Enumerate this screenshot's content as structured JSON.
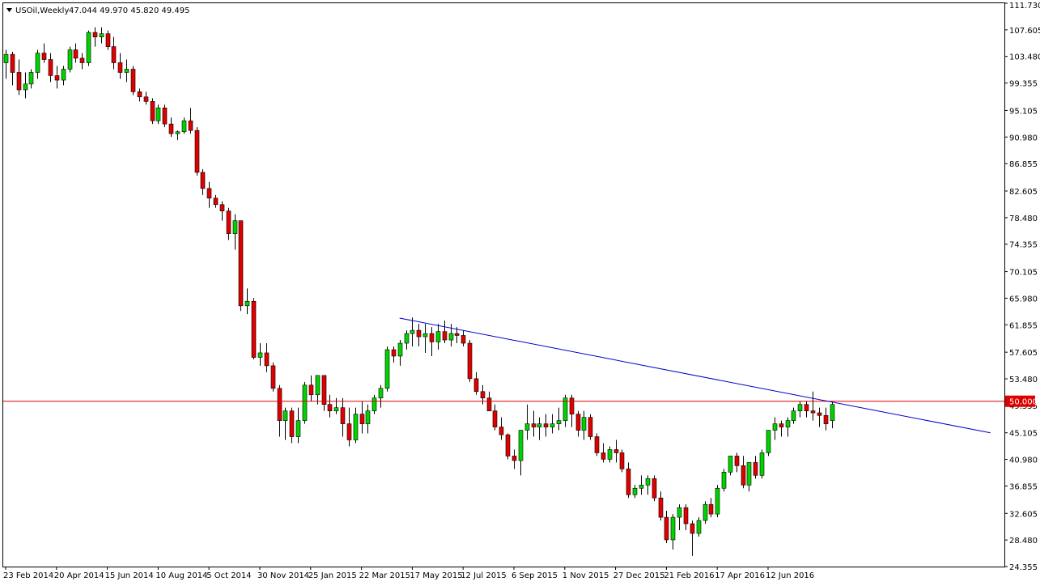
{
  "header": {
    "symbol": "USOil,Weekly",
    "ohlc": "47.044 49.970 45.820 49.495"
  },
  "colors": {
    "background": "#ffffff",
    "frame": "#000000",
    "bull_fill": "#00d400",
    "bear_fill": "#e00000",
    "wick": "#000000",
    "trendline": "#0000c8",
    "hline": "#e00000"
  },
  "chart_data": {
    "type": "candlestick",
    "title": "USOil,Weekly",
    "xlabel": "",
    "ylabel": "",
    "ylim": [
      24.355,
      111.73
    ],
    "grid": false,
    "y_ticks": [
      "111.730",
      "107.605",
      "103.480",
      "99.355",
      "95.105",
      "90.980",
      "86.855",
      "82.605",
      "78.480",
      "74.355",
      "70.105",
      "65.980",
      "61.855",
      "57.605",
      "53.480",
      "49.355",
      "45.105",
      "40.980",
      "36.855",
      "32.605",
      "28.480",
      "24.355"
    ],
    "x_ticks": [
      {
        "label": "23 Feb 2014",
        "index": 0
      },
      {
        "label": "20 Apr 2014",
        "index": 8
      },
      {
        "label": "15 Jun 2014",
        "index": 16
      },
      {
        "label": "10 Aug 2014",
        "index": 24
      },
      {
        "label": "5 Oct 2014",
        "index": 32
      },
      {
        "label": "30 Nov 2014",
        "index": 40
      },
      {
        "label": "25 Jan 2015",
        "index": 48
      },
      {
        "label": "22 Mar 2015",
        "index": 56
      },
      {
        "label": "17 May 2015",
        "index": 64
      },
      {
        "label": "12 Jul 2015",
        "index": 72
      },
      {
        "label": "6 Sep 2015",
        "index": 80
      },
      {
        "label": "1 Nov 2015",
        "index": 88
      },
      {
        "label": "27 Dec 2015",
        "index": 96
      },
      {
        "label": "21 Feb 2016",
        "index": 104
      },
      {
        "label": "17 Apr 2016",
        "index": 112
      },
      {
        "label": "12 Jun 2016",
        "index": 120
      }
    ],
    "candles": [
      [
        102.5,
        104.5,
        100.0,
        103.8
      ],
      [
        103.8,
        104.2,
        99.0,
        101.0
      ],
      [
        101.0,
        103.0,
        97.5,
        98.3
      ],
      [
        98.3,
        101.0,
        97.0,
        99.2
      ],
      [
        99.2,
        101.5,
        98.5,
        101.0
      ],
      [
        101.0,
        104.5,
        100.0,
        104.0
      ],
      [
        104.0,
        105.5,
        102.5,
        103.0
      ],
      [
        103.0,
        104.0,
        99.5,
        100.5
      ],
      [
        100.5,
        102.0,
        98.5,
        99.8
      ],
      [
        99.8,
        102.0,
        99.0,
        101.5
      ],
      [
        101.5,
        105.0,
        101.0,
        104.5
      ],
      [
        104.5,
        105.5,
        102.5,
        103.2
      ],
      [
        103.2,
        104.0,
        101.5,
        102.5
      ],
      [
        102.5,
        107.5,
        102.0,
        107.2
      ],
      [
        107.2,
        108.0,
        105.0,
        106.5
      ],
      [
        106.5,
        108.0,
        105.5,
        107.0
      ],
      [
        107.0,
        107.5,
        104.5,
        105.0
      ],
      [
        105.0,
        106.5,
        101.5,
        102.5
      ],
      [
        102.5,
        104.0,
        100.0,
        101.0
      ],
      [
        101.0,
        103.0,
        99.5,
        101.5
      ],
      [
        101.5,
        102.0,
        97.5,
        98.0
      ],
      [
        98.0,
        98.5,
        96.5,
        97.2
      ],
      [
        97.2,
        98.0,
        96.0,
        96.5
      ],
      [
        96.5,
        97.0,
        93.0,
        93.5
      ],
      [
        93.5,
        96.0,
        93.0,
        95.5
      ],
      [
        95.5,
        96.0,
        92.5,
        93.0
      ],
      [
        93.0,
        94.0,
        91.0,
        91.5
      ],
      [
        91.5,
        92.0,
        90.5,
        91.8
      ],
      [
        91.8,
        94.0,
        91.5,
        93.5
      ],
      [
        93.5,
        95.5,
        91.5,
        92.0
      ],
      [
        92.0,
        92.5,
        85.0,
        85.5
      ],
      [
        85.5,
        86.0,
        82.0,
        83.0
      ],
      [
        83.0,
        84.0,
        80.0,
        81.5
      ],
      [
        81.5,
        82.0,
        80.0,
        80.5
      ],
      [
        80.5,
        81.0,
        78.0,
        79.5
      ],
      [
        79.5,
        80.0,
        75.0,
        76.0
      ],
      [
        76.0,
        79.0,
        73.5,
        78.0
      ],
      [
        78.0,
        78.0,
        64.0,
        64.8
      ],
      [
        64.8,
        67.5,
        63.5,
        65.5
      ],
      [
        65.5,
        66.0,
        56.5,
        56.8
      ],
      [
        56.8,
        59.0,
        55.5,
        57.5
      ],
      [
        57.5,
        59.0,
        54.5,
        55.5
      ],
      [
        55.5,
        56.0,
        51.5,
        52.0
      ],
      [
        52.0,
        52.5,
        44.5,
        47.0
      ],
      [
        47.0,
        49.0,
        44.0,
        48.5
      ],
      [
        48.5,
        49.0,
        43.5,
        44.5
      ],
      [
        44.5,
        49.0,
        43.5,
        47.0
      ],
      [
        47.0,
        53.0,
        46.5,
        52.5
      ],
      [
        52.5,
        54.0,
        50.0,
        51.0
      ],
      [
        51.0,
        54.0,
        49.5,
        54.0
      ],
      [
        54.0,
        54.0,
        48.5,
        49.5
      ],
      [
        49.5,
        51.0,
        47.5,
        48.5
      ],
      [
        48.5,
        50.5,
        48.0,
        49.0
      ],
      [
        49.0,
        50.5,
        44.5,
        46.5
      ],
      [
        46.5,
        49.0,
        43.0,
        44.0
      ],
      [
        44.0,
        49.0,
        43.5,
        48.0
      ],
      [
        48.0,
        50.0,
        45.0,
        46.5
      ],
      [
        46.5,
        49.5,
        45.0,
        48.5
      ],
      [
        48.5,
        51.0,
        48.0,
        50.5
      ],
      [
        50.5,
        52.5,
        49.0,
        52.0
      ],
      [
        52.0,
        58.5,
        51.5,
        58.0
      ],
      [
        58.0,
        58.5,
        56.0,
        57.0
      ],
      [
        57.0,
        59.5,
        55.5,
        59.0
      ],
      [
        59.0,
        61.0,
        58.0,
        60.5
      ],
      [
        60.5,
        63.0,
        58.5,
        61.0
      ],
      [
        61.0,
        62.0,
        58.5,
        60.0
      ],
      [
        60.0,
        62.0,
        57.5,
        60.5
      ],
      [
        60.5,
        61.5,
        57.0,
        59.2
      ],
      [
        59.2,
        62.0,
        58.0,
        60.8
      ],
      [
        60.8,
        62.5,
        59.0,
        59.5
      ],
      [
        59.5,
        62.0,
        58.5,
        60.5
      ],
      [
        60.5,
        61.5,
        59.0,
        60.2
      ],
      [
        60.2,
        61.0,
        58.5,
        59.0
      ],
      [
        59.0,
        59.5,
        53.0,
        53.5
      ],
      [
        53.5,
        54.5,
        51.0,
        51.5
      ],
      [
        51.5,
        52.5,
        49.5,
        50.5
      ],
      [
        50.5,
        51.5,
        48.5,
        48.5
      ],
      [
        48.5,
        49.5,
        45.5,
        46.0
      ],
      [
        46.0,
        47.5,
        44.0,
        44.8
      ],
      [
        44.8,
        45.0,
        41.0,
        41.5
      ],
      [
        41.5,
        42.5,
        39.5,
        40.8
      ],
      [
        40.8,
        45.5,
        38.5,
        45.5
      ],
      [
        45.5,
        49.5,
        44.0,
        46.5
      ],
      [
        46.5,
        48.5,
        44.5,
        46.0
      ],
      [
        46.0,
        47.5,
        44.0,
        46.5
      ],
      [
        46.5,
        48.0,
        44.5,
        46.0
      ],
      [
        46.0,
        48.0,
        45.0,
        46.5
      ],
      [
        46.5,
        49.0,
        45.5,
        47.0
      ],
      [
        47.0,
        51.0,
        46.0,
        50.5
      ],
      [
        50.5,
        51.0,
        46.0,
        48.0
      ],
      [
        48.0,
        48.5,
        44.5,
        45.5
      ],
      [
        45.5,
        48.5,
        44.0,
        47.5
      ],
      [
        47.5,
        48.0,
        44.0,
        44.5
      ],
      [
        44.5,
        45.0,
        41.5,
        42.0
      ],
      [
        42.0,
        43.5,
        40.5,
        41.0
      ],
      [
        41.0,
        43.0,
        40.5,
        42.5
      ],
      [
        42.5,
        44.0,
        40.5,
        42.0
      ],
      [
        42.0,
        42.5,
        39.0,
        39.5
      ],
      [
        39.5,
        40.5,
        35.0,
        35.5
      ],
      [
        35.5,
        37.0,
        35.0,
        36.5
      ],
      [
        36.5,
        38.5,
        35.5,
        37.0
      ],
      [
        37.0,
        38.5,
        35.5,
        38.0
      ],
      [
        38.0,
        38.5,
        34.5,
        35.0
      ],
      [
        35.0,
        36.0,
        31.5,
        32.0
      ],
      [
        32.0,
        33.0,
        28.0,
        28.5
      ],
      [
        28.5,
        32.5,
        27.0,
        32.0
      ],
      [
        32.0,
        34.0,
        30.0,
        33.5
      ],
      [
        33.5,
        34.0,
        30.0,
        31.0
      ],
      [
        31.0,
        31.5,
        26.0,
        29.5
      ],
      [
        29.5,
        32.0,
        29.0,
        31.5
      ],
      [
        31.5,
        34.5,
        31.0,
        34.0
      ],
      [
        34.0,
        35.0,
        32.0,
        32.5
      ],
      [
        32.5,
        37.0,
        32.0,
        36.5
      ],
      [
        36.5,
        39.5,
        36.0,
        39.0
      ],
      [
        39.0,
        41.5,
        38.5,
        41.5
      ],
      [
        41.5,
        42.0,
        39.0,
        40.0
      ],
      [
        40.0,
        41.5,
        36.5,
        37.0
      ],
      [
        37.0,
        40.5,
        36.0,
        40.5
      ],
      [
        40.5,
        41.5,
        38.0,
        38.5
      ],
      [
        38.5,
        42.5,
        38.0,
        42.0
      ],
      [
        42.0,
        45.5,
        41.5,
        45.5
      ],
      [
        45.5,
        47.5,
        44.0,
        46.5
      ],
      [
        46.5,
        47.0,
        44.5,
        46.0
      ],
      [
        46.0,
        47.5,
        44.5,
        47.0
      ],
      [
        47.0,
        49.0,
        46.5,
        48.5
      ],
      [
        48.5,
        50.0,
        47.5,
        49.5
      ],
      [
        49.5,
        50.0,
        47.5,
        48.5
      ],
      [
        48.5,
        51.5,
        47.0,
        48.2
      ],
      [
        48.2,
        49.0,
        46.0,
        47.8
      ],
      [
        47.8,
        49.0,
        45.5,
        46.5
      ],
      [
        47.0,
        50.0,
        45.8,
        49.5
      ]
    ],
    "trendline": {
      "start": [
        62,
        62.9
      ],
      "end": [
        155,
        45.1
      ]
    },
    "hline": {
      "value": 50.0,
      "label": "50.000"
    }
  }
}
